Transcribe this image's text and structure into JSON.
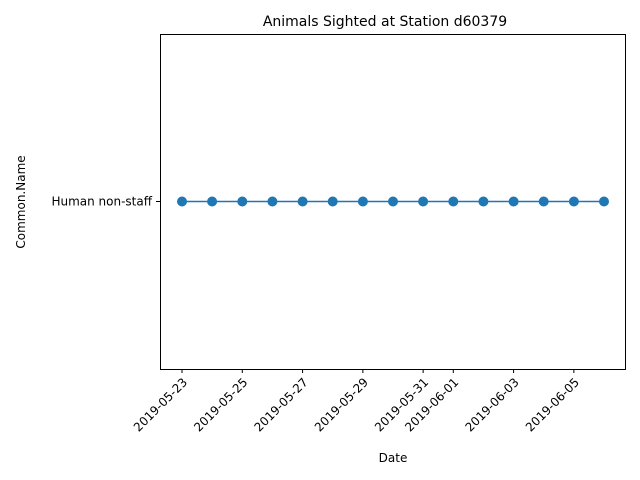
{
  "chart_data": {
    "type": "line",
    "title": "Animals Sighted at Station d60379",
    "xlabel": "Date",
    "ylabel": "Common.Name",
    "categories_y": [
      "Human non-staff"
    ],
    "x_ticks": [
      "2019-05-23",
      "2019-05-25",
      "2019-05-27",
      "2019-05-29",
      "2019-05-31",
      "2019-06-01",
      "2019-06-03",
      "2019-06-05"
    ],
    "xlim": [
      "2019-05-22",
      "2019-06-07"
    ],
    "series": [
      {
        "color": "#1f77b4",
        "marker": "circle",
        "x": [
          "2019-05-23",
          "2019-05-24",
          "2019-05-25",
          "2019-05-26",
          "2019-05-27",
          "2019-05-28",
          "2019-05-29",
          "2019-05-30",
          "2019-05-31",
          "2019-06-01",
          "2019-06-02",
          "2019-06-03",
          "2019-06-04",
          "2019-06-05",
          "2019-06-06"
        ],
        "y": [
          "Human non-staff",
          "Human non-staff",
          "Human non-staff",
          "Human non-staff",
          "Human non-staff",
          "Human non-staff",
          "Human non-staff",
          "Human non-staff",
          "Human non-staff",
          "Human non-staff",
          "Human non-staff",
          "Human non-staff",
          "Human non-staff",
          "Human non-staff",
          "Human non-staff"
        ]
      }
    ],
    "grid": false,
    "legend": "none"
  }
}
